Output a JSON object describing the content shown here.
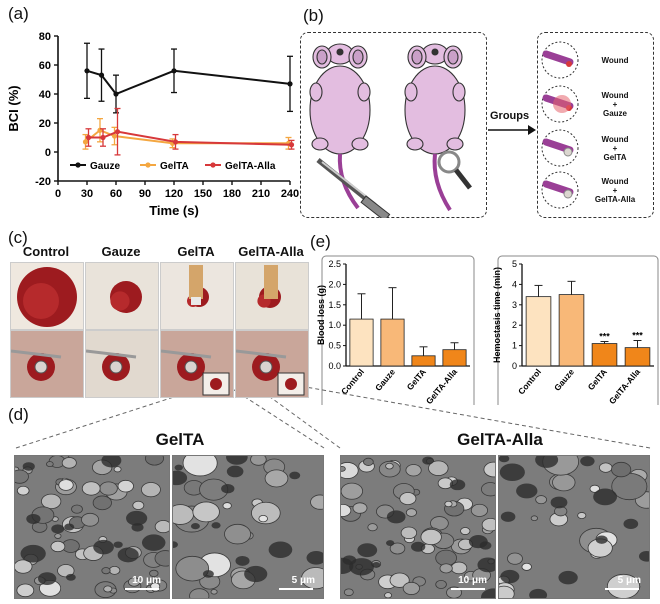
{
  "panels": {
    "a": "(a)",
    "b": "(b)",
    "c": "(c)",
    "d": "(d)",
    "e": "(e)"
  },
  "panel_b": {
    "groups_label": "Groups",
    "group_items": [
      "Wound",
      "Wound\n+\nGauze",
      "Wound\n+\nGelTA",
      "Wound\n+\nGelTA-Alla"
    ]
  },
  "panel_c": {
    "columns": [
      "Control",
      "Gauze",
      "GelTA",
      "GelTA-Alla"
    ]
  },
  "panel_d": {
    "left_title": "GelTA",
    "right_title": "GelTA-Alla",
    "scalebars": [
      "10 μm",
      "5 μm",
      "10 μm",
      "5 μm"
    ]
  },
  "chart_data": [
    {
      "type": "line",
      "xlabel": "Time (s)",
      "ylabel": "BCI (%)",
      "xlim": [
        0,
        240
      ],
      "ylim": [
        -20,
        80
      ],
      "xticks": [
        0,
        30,
        60,
        90,
        120,
        150,
        180,
        210,
        240
      ],
      "yticks": [
        -20,
        0,
        20,
        40,
        60,
        80
      ],
      "legend_position": "bottom",
      "series": [
        {
          "name": "Gauze",
          "color": "#111111",
          "x": [
            30,
            45,
            60,
            120,
            240
          ],
          "y": [
            56,
            53,
            40,
            56,
            47
          ],
          "err": [
            19,
            18,
            13,
            15,
            19
          ]
        },
        {
          "name": "GelTA",
          "color": "#f4a741",
          "x": [
            30,
            45,
            60,
            120,
            240
          ],
          "y": [
            7,
            15,
            11,
            6,
            6
          ],
          "err": [
            5,
            8,
            6,
            3,
            4
          ]
        },
        {
          "name": "GelTA-Alla",
          "color": "#d7383a",
          "x": [
            30,
            45,
            60,
            120,
            240
          ],
          "y": [
            10,
            10,
            14,
            7,
            5
          ],
          "err": [
            6,
            6,
            16,
            5,
            3
          ]
        }
      ]
    },
    {
      "type": "bar",
      "ylabel": "Blood loss (g)",
      "categories": [
        "Control",
        "Gauze",
        "GelTA",
        "GelTA-Alla"
      ],
      "values": [
        1.15,
        1.15,
        0.25,
        0.4
      ],
      "errors": [
        0.62,
        0.77,
        0.22,
        0.17
      ],
      "colors": [
        "#fde3c0",
        "#f8b878",
        "#f0861a",
        "#f0861a"
      ],
      "ylim": [
        0,
        2.5
      ],
      "yticks": [
        0.0,
        0.5,
        1.0,
        1.5,
        2.0,
        2.5
      ]
    },
    {
      "type": "bar",
      "ylabel": "Hemostasis time (min)",
      "categories": [
        "Control",
        "Gauze",
        "GelTA",
        "GelTA-Alla"
      ],
      "values": [
        3.4,
        3.5,
        1.1,
        0.9
      ],
      "errors": [
        0.55,
        0.65,
        0.1,
        0.35
      ],
      "colors": [
        "#fde3c0",
        "#f8b878",
        "#f0861a",
        "#f0861a"
      ],
      "significance": [
        "",
        "",
        "***",
        "***"
      ],
      "ylim": [
        0,
        5
      ],
      "yticks": [
        0,
        1,
        2,
        3,
        4,
        5
      ]
    }
  ]
}
